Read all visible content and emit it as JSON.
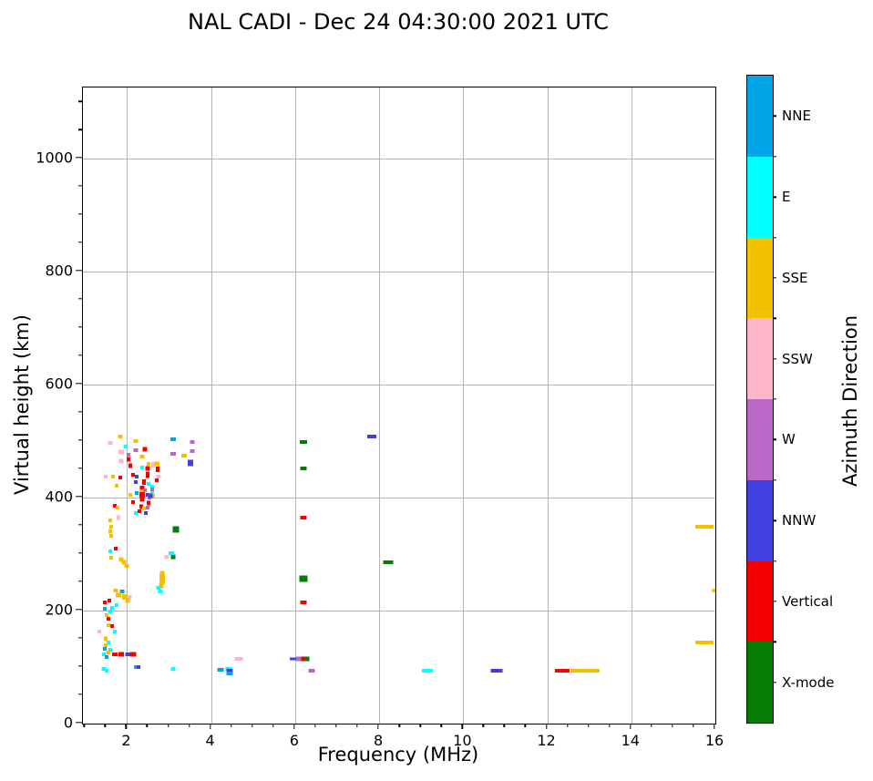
{
  "title": "NAL CADI - Dec 24 04:30:00 2021 UTC",
  "chart_data": {
    "type": "scatter",
    "title": "NAL CADI - Dec 24 04:30:00 2021 UTC",
    "xlabel": "Frequency (MHz)",
    "ylabel": "Virtual height (km)",
    "xlim": [
      0.95,
      16
    ],
    "ylim": [
      0,
      1126
    ],
    "x_ticks": [
      2,
      4,
      6,
      8,
      10,
      12,
      14,
      16
    ],
    "y_ticks": [
      0,
      200,
      400,
      600,
      800,
      1000
    ],
    "x_minor_step": 0.5,
    "y_minor_step": 50,
    "grid": true,
    "grid_color": "#b5b5b5",
    "colorbar_label": "Azimuth Direction",
    "directions": [
      {
        "label": "NNE",
        "color": "#00A6E8"
      },
      {
        "label": "E",
        "color": "#00FFFF"
      },
      {
        "label": "SSE",
        "color": "#F2C200"
      },
      {
        "label": "SSW",
        "color": "#FFB6C8"
      },
      {
        "label": "W",
        "color": "#BA68C8"
      },
      {
        "label": "NNW",
        "color": "#4040E0"
      },
      {
        "label": "Vertical",
        "color": "#F40000"
      },
      {
        "label": "X-mode",
        "color": "#067B06"
      }
    ],
    "points_format": [
      "freq_mhz",
      "virtual_height_km",
      "azimuth",
      "width_px",
      "height_px"
    ],
    "points": [
      [
        1.83,
        508,
        "SSE",
        5,
        4
      ],
      [
        1.6,
        497,
        "SSW",
        5,
        4
      ],
      [
        2.2,
        500,
        "SSE",
        5,
        4
      ],
      [
        1.97,
        490,
        "E",
        4,
        4
      ],
      [
        2.43,
        486,
        "Vertical",
        5,
        5
      ],
      [
        2.2,
        484,
        "W",
        5,
        4
      ],
      [
        1.85,
        481,
        "SSW",
        6,
        5
      ],
      [
        2.04,
        476,
        "W",
        4,
        4
      ],
      [
        2.37,
        473,
        "SSE",
        5,
        4
      ],
      [
        2.04,
        468,
        "Vertical",
        4,
        5
      ],
      [
        1.85,
        465,
        "SSW",
        5,
        5
      ],
      [
        2.52,
        459,
        "SSE",
        4,
        4
      ],
      [
        2.08,
        456,
        "Vertical",
        4,
        5
      ],
      [
        2.37,
        453,
        "E",
        4,
        4
      ],
      [
        2.48,
        451,
        "Vertical",
        5,
        5
      ],
      [
        2.63,
        456,
        "SSW",
        4,
        4
      ],
      [
        2.48,
        440,
        "Vertical",
        4,
        7
      ],
      [
        2.15,
        440,
        "Vertical",
        4,
        4
      ],
      [
        2.22,
        437,
        "NNW",
        4,
        4
      ],
      [
        1.67,
        437,
        "SSE",
        4,
        4
      ],
      [
        1.83,
        435,
        "Vertical",
        4,
        4
      ],
      [
        1.5,
        437,
        "SSW",
        4,
        4
      ],
      [
        2.4,
        427,
        "Vertical",
        4,
        6
      ],
      [
        2.2,
        427,
        "NNW",
        4,
        4
      ],
      [
        2.52,
        424,
        "E",
        4,
        4
      ],
      [
        1.76,
        421,
        "SSE",
        4,
        4
      ],
      [
        2.37,
        416,
        "Vertical",
        5,
        6
      ],
      [
        2.33,
        411,
        "SSE",
        4,
        4
      ],
      [
        2.43,
        413,
        "W",
        4,
        4
      ],
      [
        2.37,
        405,
        "Vertical",
        6,
        6
      ],
      [
        2.48,
        405,
        "NNW",
        4,
        4
      ],
      [
        2.59,
        408,
        "E",
        4,
        4
      ],
      [
        2.22,
        408,
        "NNE",
        4,
        4
      ],
      [
        2.08,
        405,
        "SSE",
        4,
        4
      ],
      [
        2.37,
        397,
        "Vertical",
        5,
        5
      ],
      [
        2.54,
        400,
        "W",
        4,
        4
      ],
      [
        2.63,
        403,
        "SSE",
        4,
        4
      ],
      [
        2.15,
        392,
        "Vertical",
        4,
        4
      ],
      [
        2.33,
        384,
        "Vertical",
        4,
        5
      ],
      [
        2.41,
        381,
        "SSE",
        4,
        4
      ],
      [
        2.3,
        376,
        "Vertical",
        4,
        4
      ],
      [
        2.2,
        372,
        "E",
        4,
        4
      ],
      [
        2.45,
        373,
        "NNW",
        4,
        4
      ],
      [
        1.7,
        385,
        "Vertical",
        4,
        4
      ],
      [
        1.78,
        382,
        "SSE",
        4,
        4
      ],
      [
        1.8,
        365,
        "SSW",
        4,
        5
      ],
      [
        3.1,
        503,
        "NNE",
        6,
        4
      ],
      [
        3.55,
        499,
        "W",
        5,
        4
      ],
      [
        3.1,
        477,
        "W",
        6,
        4
      ],
      [
        3.35,
        474,
        "SSE",
        6,
        4
      ],
      [
        3.55,
        482,
        "W",
        5,
        4
      ],
      [
        3.5,
        462,
        "NNW",
        6,
        7
      ],
      [
        2.7,
        460,
        "SSE",
        6,
        5
      ],
      [
        2.62,
        460,
        "SSW",
        4,
        4
      ],
      [
        2.72,
        450,
        "Vertical",
        4,
        6
      ],
      [
        2.75,
        437,
        "SSW",
        5,
        4
      ],
      [
        2.7,
        430,
        "Vertical",
        4,
        4
      ],
      [
        2.6,
        420,
        "E",
        4,
        4
      ],
      [
        2.6,
        414,
        "W",
        4,
        4
      ],
      [
        2.55,
        403,
        "NNW",
        5,
        5
      ],
      [
        2.52,
        390,
        "Vertical",
        4,
        5
      ],
      [
        2.5,
        383,
        "W",
        4,
        4
      ],
      [
        1.6,
        360,
        "SSE",
        4,
        4
      ],
      [
        1.62,
        349,
        "SSE",
        4,
        4
      ],
      [
        1.6,
        341,
        "SSE",
        4,
        5
      ],
      [
        1.63,
        332,
        "SSE",
        4,
        4
      ],
      [
        1.6,
        305,
        "E",
        4,
        4
      ],
      [
        1.72,
        309,
        "Vertical",
        4,
        4
      ],
      [
        1.63,
        293,
        "SSE",
        4,
        4
      ],
      [
        1.85,
        291,
        "SSE",
        5,
        5
      ],
      [
        1.92,
        286,
        "SSE",
        5,
        5
      ],
      [
        2.0,
        279,
        "SSE",
        5,
        4
      ],
      [
        3.17,
        343,
        "X-mode",
        7,
        7
      ],
      [
        3.1,
        295,
        "X-mode",
        5,
        5
      ],
      [
        2.95,
        296,
        "SSW",
        5,
        4
      ],
      [
        3.05,
        302,
        "E",
        6,
        4
      ],
      [
        2.84,
        266,
        "SSE",
        5,
        5
      ],
      [
        2.84,
        259,
        "SSE",
        6,
        6
      ],
      [
        2.84,
        251,
        "SSE",
        6,
        6
      ],
      [
        2.82,
        243,
        "SSE",
        5,
        5
      ],
      [
        2.76,
        241,
        "E",
        5,
        4
      ],
      [
        2.8,
        234,
        "E",
        5,
        4
      ],
      [
        1.73,
        236,
        "SSE",
        5,
        4
      ],
      [
        1.88,
        234,
        "NNE",
        5,
        4
      ],
      [
        1.8,
        228,
        "SSE",
        6,
        5
      ],
      [
        1.95,
        225,
        "SSE",
        6,
        6
      ],
      [
        2.05,
        224,
        "SSW",
        5,
        4
      ],
      [
        2.02,
        218,
        "SSE",
        5,
        5
      ],
      [
        1.57,
        217,
        "Vertical",
        4,
        4
      ],
      [
        1.75,
        210,
        "E",
        4,
        4
      ],
      [
        1.65,
        205,
        "E",
        4,
        4
      ],
      [
        1.48,
        214,
        "Vertical",
        4,
        4
      ],
      [
        1.47,
        203,
        "NNE",
        4,
        4
      ],
      [
        1.6,
        198,
        "E",
        4,
        4
      ],
      [
        1.52,
        192,
        "SSE",
        4,
        4
      ],
      [
        1.55,
        185,
        "Vertical",
        4,
        4
      ],
      [
        1.55,
        175,
        "SSE",
        4,
        4
      ],
      [
        1.65,
        172,
        "Vertical",
        4,
        4
      ],
      [
        1.7,
        163,
        "E",
        4,
        4
      ],
      [
        1.35,
        163,
        "SSW",
        4,
        4
      ],
      [
        1.5,
        150,
        "SSE",
        4,
        5
      ],
      [
        1.55,
        143,
        "E",
        4,
        4
      ],
      [
        1.5,
        138,
        "SSE",
        4,
        4
      ],
      [
        1.47,
        132,
        "NNE",
        4,
        4
      ],
      [
        1.6,
        130,
        "E",
        4,
        4
      ],
      [
        1.55,
        126,
        "SSE",
        4,
        4
      ],
      [
        1.45,
        122,
        "E",
        4,
        4
      ],
      [
        1.52,
        118,
        "NNE",
        4,
        4
      ],
      [
        1.7,
        122,
        "Vertical",
        6,
        4
      ],
      [
        1.85,
        123,
        "Vertical",
        6,
        5
      ],
      [
        2.02,
        123,
        "NNW",
        5,
        4
      ],
      [
        2.15,
        123,
        "Vertical",
        7,
        5
      ],
      [
        1.45,
        97,
        "E",
        5,
        4
      ],
      [
        1.52,
        93,
        "E",
        4,
        4
      ],
      [
        2.2,
        100,
        "NNE",
        4,
        4
      ],
      [
        2.28,
        100,
        "NNW",
        4,
        4
      ],
      [
        3.1,
        96,
        "E",
        5,
        4
      ],
      [
        4.22,
        95,
        "NNE",
        7,
        4
      ],
      [
        4.42,
        97,
        "E",
        7,
        4
      ],
      [
        4.45,
        93,
        "NNW",
        7,
        4
      ],
      [
        4.45,
        89,
        "NNE",
        7,
        4
      ],
      [
        4.65,
        115,
        "SSW",
        9,
        4
      ],
      [
        6.4,
        93,
        "W",
        7,
        4
      ],
      [
        6.2,
        498,
        "X-mode",
        8,
        4
      ],
      [
        6.2,
        451,
        "X-mode",
        7,
        4
      ],
      [
        6.2,
        364,
        "Vertical",
        7,
        4
      ],
      [
        6.2,
        256,
        "X-mode",
        9,
        7
      ],
      [
        6.2,
        214,
        "Vertical",
        7,
        4
      ],
      [
        5.95,
        114,
        "NNW",
        8,
        3
      ],
      [
        6.1,
        114,
        "W",
        6,
        5
      ],
      [
        6.2,
        114,
        "Vertical",
        5,
        5
      ],
      [
        6.28,
        114,
        "X-mode",
        5,
        5
      ],
      [
        7.82,
        508,
        "NNW",
        10,
        4
      ],
      [
        8.22,
        285,
        "X-mode",
        11,
        4
      ],
      [
        9.15,
        93,
        "E",
        12,
        4
      ],
      [
        10.8,
        93,
        "NNW",
        13,
        4
      ],
      [
        12.35,
        93,
        "Vertical",
        16,
        4
      ],
      [
        12.9,
        93,
        "SSE",
        32,
        4
      ],
      [
        15.75,
        348,
        "SSE",
        20,
        4
      ],
      [
        15.97,
        235,
        "SSE",
        5,
        4
      ],
      [
        15.75,
        144,
        "SSE",
        20,
        4
      ]
    ]
  }
}
